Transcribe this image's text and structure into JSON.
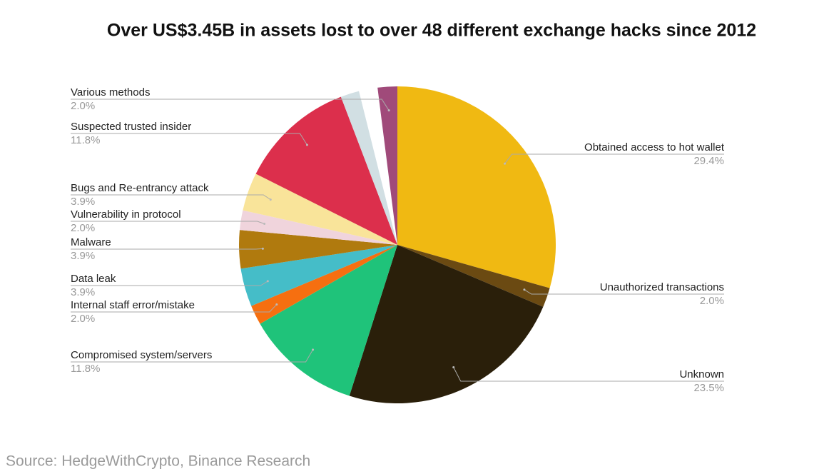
{
  "chart_data": {
    "type": "pie",
    "title": "Over US$3.45B in assets lost to over 48 different exchange hacks since 2012",
    "categories": [
      "Obtained access to hot wallet",
      "Unauthorized transactions",
      "Unknown",
      "Compromised system/servers",
      "Internal staff error/mistake",
      "Data leak",
      "Malware",
      "Vulnerability in protocol",
      "Bugs and Re-entrancy attack",
      "Suspected trusted insider",
      null,
      null,
      "Various methods"
    ],
    "values": [
      29.4,
      2.0,
      23.5,
      11.8,
      2.0,
      3.9,
      3.9,
      2.0,
      3.9,
      11.8,
      1.9,
      1.9,
      2.0
    ],
    "value_labels": [
      "29.4%",
      "2.0%",
      "23.5%",
      "11.8%",
      "2.0%",
      "3.9%",
      "3.9%",
      "2.0%",
      "3.9%",
      "11.8%",
      null,
      null,
      "2.0%"
    ],
    "colors": [
      "#f0b912",
      "#6b4a12",
      "#2a1f0a",
      "#1fc37a",
      "#f66f10",
      "#45bdc8",
      "#b07a0e",
      "#f0d4dc",
      "#f9e49a",
      "#dc2f4c",
      "#d1dfe3",
      "#ffffff",
      "#a04a7a"
    ],
    "source": "Source: HedgeWithCrypto, Binance Research"
  }
}
